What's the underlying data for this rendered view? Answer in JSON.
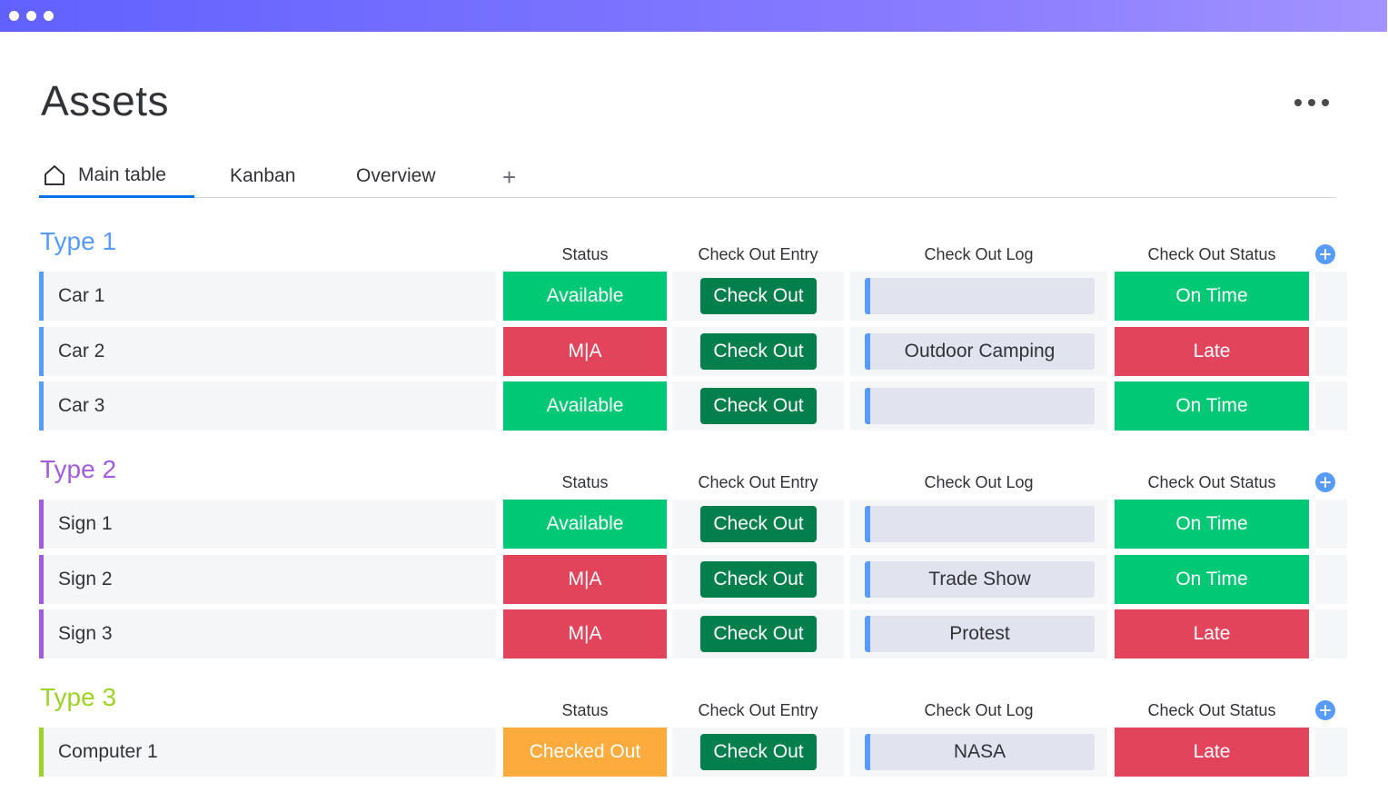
{
  "window": {
    "dots": 3
  },
  "page": {
    "title": "Assets"
  },
  "tabs": [
    {
      "label": "Main table",
      "active": true,
      "icon": "home-icon"
    },
    {
      "label": "Kanban",
      "active": false
    },
    {
      "label": "Overview",
      "active": false
    }
  ],
  "tab_add_label": "+",
  "columns": {
    "status": "Status",
    "entry": "Check Out Entry",
    "log": "Check Out Log",
    "checkout_status": "Check Out Status"
  },
  "colors": {
    "Available": "#00c875",
    "M|A": "#e2445c",
    "Checked Out": "#fdab3d",
    "On Time": "#00c875",
    "Late": "#e2445c",
    "accent": "#0073ea"
  },
  "groups": [
    {
      "title": "Type 1",
      "color": "#579bfc",
      "rows": [
        {
          "name": "Car 1",
          "status": "Available",
          "entry": "Check Out",
          "log": "",
          "checkout_status": "On Time"
        },
        {
          "name": "Car 2",
          "status": "M|A",
          "entry": "Check Out",
          "log": "Outdoor Camping",
          "checkout_status": "Late"
        },
        {
          "name": "Car 3",
          "status": "Available",
          "entry": "Check Out",
          "log": "",
          "checkout_status": "On Time"
        }
      ]
    },
    {
      "title": "Type 2",
      "color": "#a25ddc",
      "rows": [
        {
          "name": "Sign 1",
          "status": "Available",
          "entry": "Check Out",
          "log": "",
          "checkout_status": "On Time"
        },
        {
          "name": "Sign 2",
          "status": "M|A",
          "entry": "Check Out",
          "log": "Trade Show",
          "checkout_status": "On Time"
        },
        {
          "name": "Sign 3",
          "status": "M|A",
          "entry": "Check Out",
          "log": "Protest",
          "checkout_status": "Late"
        }
      ]
    },
    {
      "title": "Type 3",
      "color": "#9cd326",
      "rows": [
        {
          "name": "Computer 1",
          "status": "Checked Out",
          "entry": "Check Out",
          "log": "NASA",
          "checkout_status": "Late"
        }
      ]
    }
  ]
}
